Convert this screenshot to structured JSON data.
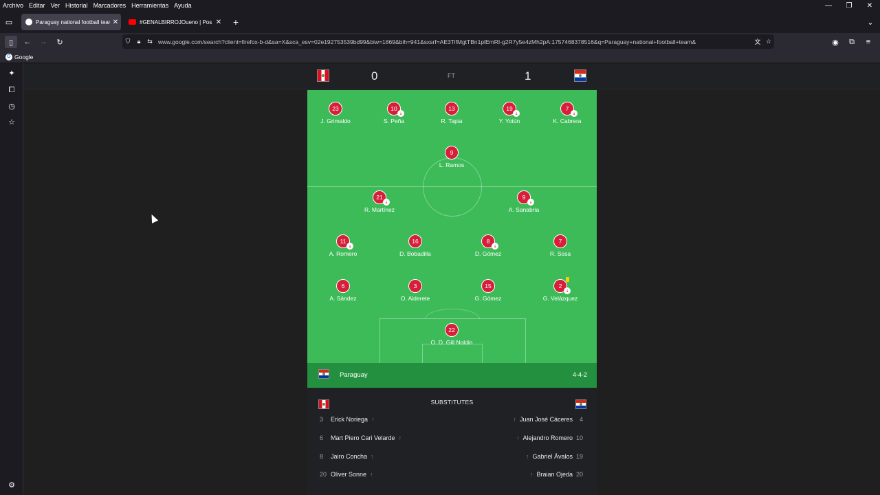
{
  "menubar": {
    "items": [
      "Archivo",
      "Editar",
      "Ver",
      "Historial",
      "Marcadores",
      "Herramientas",
      "Ayuda"
    ]
  },
  "window_controls": {
    "minimize": "—",
    "restore": "❐",
    "close": "✕"
  },
  "tabs": [
    {
      "title": "Paraguay national football team",
      "favicon": "google-favicon",
      "active": true
    },
    {
      "title": "#GENALBIRROJOueno | Pos -Pe",
      "favicon": "youtube-favicon",
      "active": false
    }
  ],
  "tab_strip": {
    "new_tab": "+",
    "list_all": "⌄",
    "tab_close": "✕"
  },
  "url": "www.google.com/search?client=firefox-b-d&sa=X&sca_esv=02e192753539bd99&biw=1869&bih=941&sxsrf=AE3TifMgtTBn1plEmRI-g2R7y5e4zMh2pA:1757468378516&q=Paraguay+national+football+team&",
  "bookmarks": [
    {
      "label": "Google"
    }
  ],
  "match": {
    "home_team_flag": "peru-flag",
    "away_team_flag": "paraguay-flag",
    "home_score": "0",
    "status": "FT",
    "away_score": "1"
  },
  "lineup": {
    "team": "Paraguay",
    "formation": "4-4-2",
    "players": [
      {
        "num": "23",
        "name": "J. Grimaldo",
        "sub": false,
        "card": false
      },
      {
        "num": "10",
        "name": "S. Peña",
        "sub": true,
        "card": false
      },
      {
        "num": "13",
        "name": "R. Tapia",
        "sub": false,
        "card": false
      },
      {
        "num": "19",
        "name": "Y. Yotún",
        "sub": true,
        "card": false
      },
      {
        "num": "7",
        "name": "K. Cabrera",
        "sub": true,
        "card": false
      },
      {
        "num": "9",
        "name": "L. Ramos",
        "sub": false,
        "card": false
      },
      {
        "num": "21",
        "name": "R. Martínez",
        "sub": true,
        "card": false
      },
      {
        "num": "9",
        "name": "A. Sanabria",
        "sub": true,
        "card": false
      },
      {
        "num": "11",
        "name": "A. Romero",
        "sub": true,
        "card": false
      },
      {
        "num": "16",
        "name": "D. Bobadilla",
        "sub": false,
        "card": false
      },
      {
        "num": "8",
        "name": "D. Gómez",
        "sub": true,
        "card": false
      },
      {
        "num": "7",
        "name": "R. Sosa",
        "sub": false,
        "card": false
      },
      {
        "num": "6",
        "name": "A. Sández",
        "sub": false,
        "card": false
      },
      {
        "num": "3",
        "name": "O. Alderete",
        "sub": false,
        "card": false
      },
      {
        "num": "15",
        "name": "G. Gómez",
        "sub": false,
        "card": false
      },
      {
        "num": "2",
        "name": "G. Velázquez",
        "sub": true,
        "card": true
      },
      {
        "num": "22",
        "name": "O. D. Gill Noldin",
        "sub": false,
        "card": false
      }
    ]
  },
  "substitutes": {
    "title": "SUBSTITUTES",
    "left": [
      {
        "num": "3",
        "name": "Erick Noriega"
      },
      {
        "num": "6",
        "name": "Mart Piero Cari Velarde"
      },
      {
        "num": "8",
        "name": "Jairo Concha"
      },
      {
        "num": "20",
        "name": "Oliver Sonne"
      }
    ],
    "right": [
      {
        "num": "4",
        "name": "Juan José Cáceres"
      },
      {
        "num": "10",
        "name": "Alejandro Romero"
      },
      {
        "num": "19",
        "name": "Gabriel Ávalos"
      },
      {
        "num": "20",
        "name": "Braian Ojeda"
      }
    ],
    "arrow": "↑"
  },
  "colors": {
    "pitch": "#3dbb59",
    "team_bar": "#23903f",
    "player_badge": "#d71f3a",
    "sub_arrow": "#34a853"
  }
}
